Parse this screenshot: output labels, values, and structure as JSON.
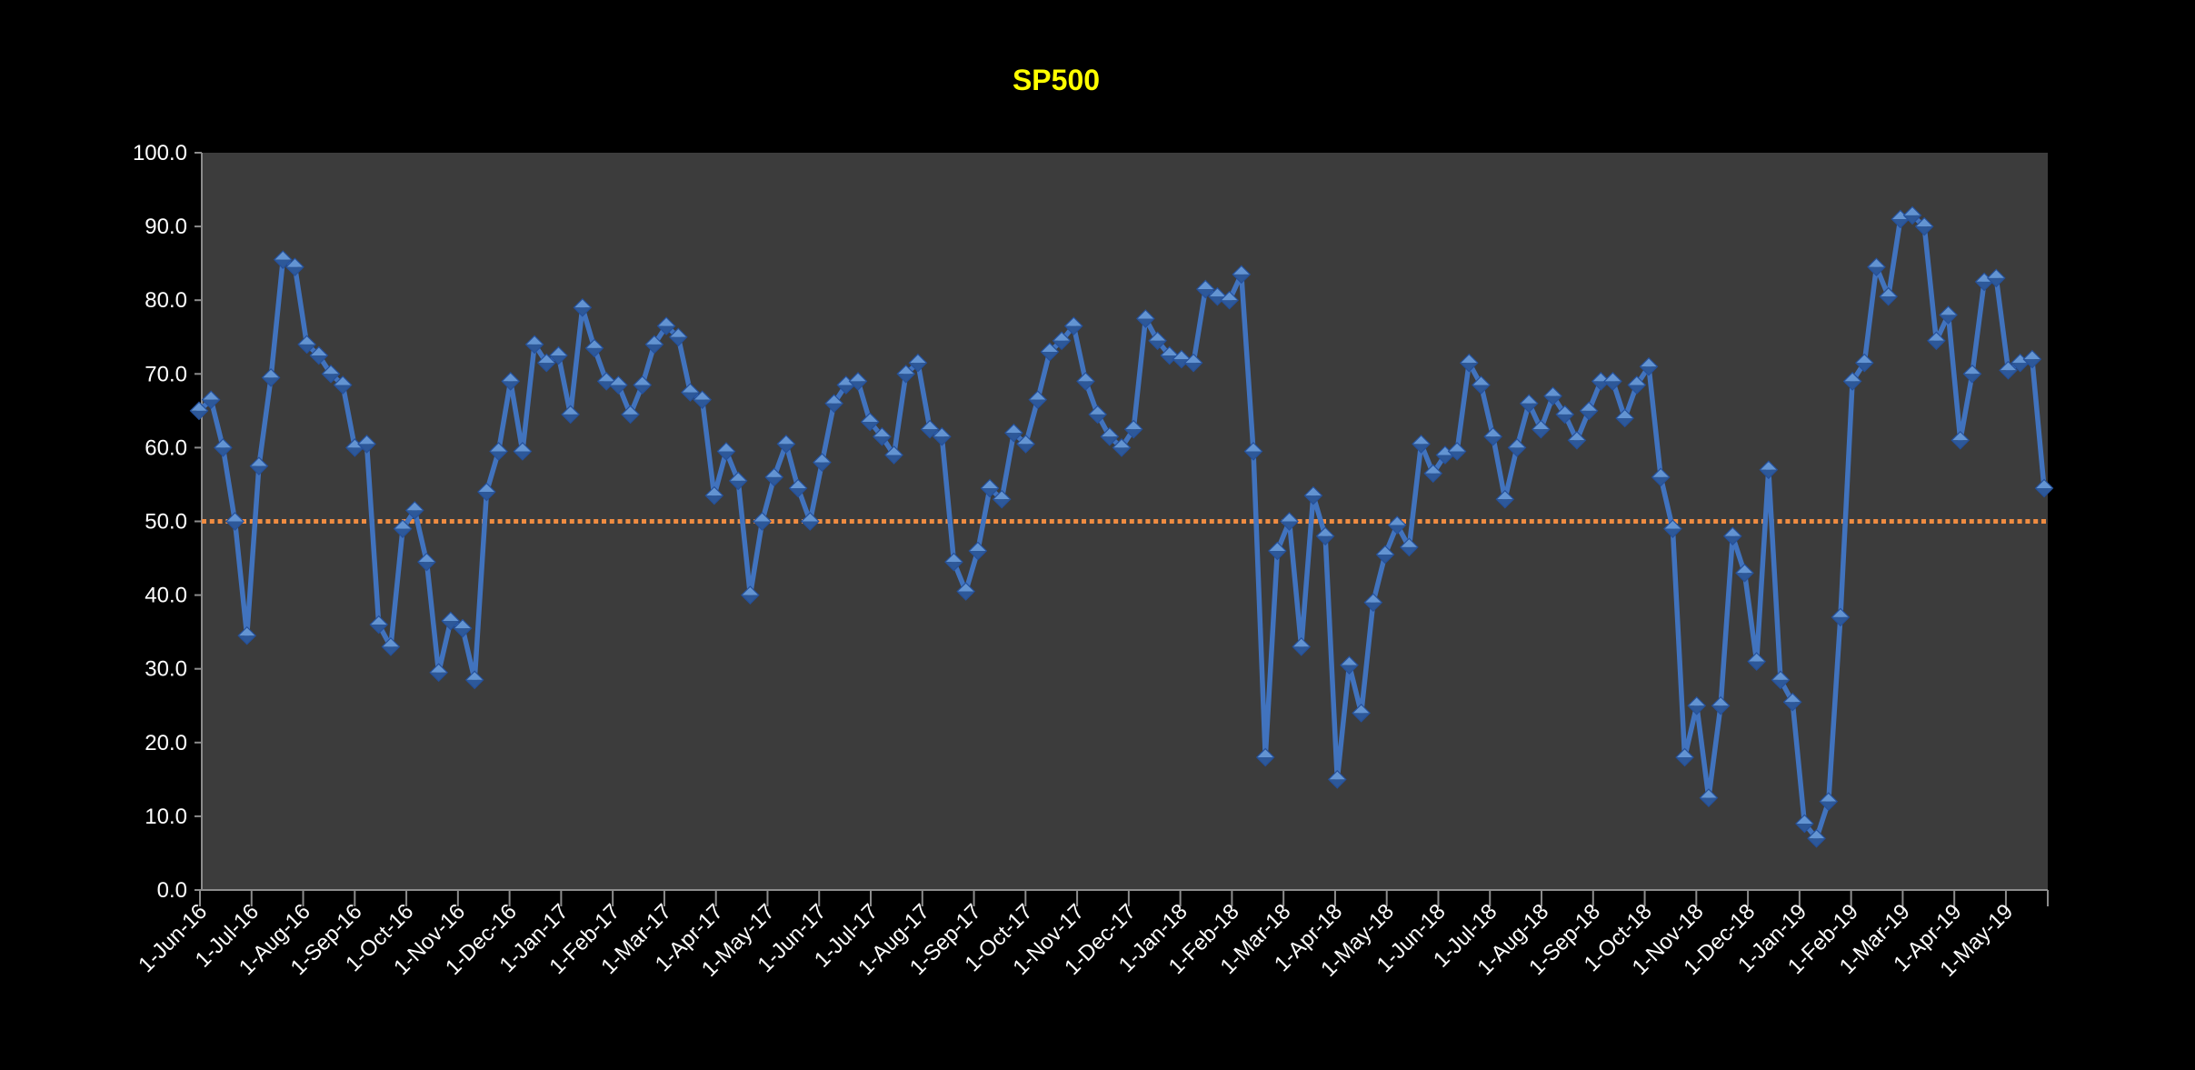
{
  "chart_data": {
    "type": "line",
    "title": "SP500",
    "marker": "diamond",
    "grid": false,
    "legend": "none",
    "frequency": "weekly",
    "ylim": [
      0,
      100
    ],
    "y_tick_labels": [
      "0.0",
      "10.0",
      "20.0",
      "30.0",
      "40.0",
      "50.0",
      "60.0",
      "70.0",
      "80.0",
      "90.0",
      "100.0"
    ],
    "x_tick_labels": [
      "1-Jun-16",
      "1-Jul-16",
      "1-Aug-16",
      "1-Sep-16",
      "1-Oct-16",
      "1-Nov-16",
      "1-Dec-16",
      "1-Jan-17",
      "1-Feb-17",
      "1-Mar-17",
      "1-Apr-17",
      "1-May-17",
      "1-Jun-17",
      "1-Jul-17",
      "1-Aug-17",
      "1-Sep-17",
      "1-Oct-17",
      "1-Nov-17",
      "1-Dec-17",
      "1-Jan-18",
      "1-Feb-18",
      "1-Mar-18",
      "1-Apr-18",
      "1-May-18",
      "1-Jun-18",
      "1-Jul-18",
      "1-Aug-18",
      "1-Sep-18",
      "1-Oct-18",
      "1-Nov-18",
      "1-Dec-18",
      "1-Jan-19",
      "1-Feb-19",
      "1-Mar-19",
      "1-Apr-19",
      "1-May-19"
    ],
    "reference_line": {
      "value": 50.0,
      "style": "dotted"
    },
    "series": [
      {
        "name": "SP500",
        "values": [
          65,
          66.5,
          60,
          50,
          34.5,
          57.5,
          69.5,
          85.5,
          84.5,
          74,
          72.5,
          70,
          68.5,
          60,
          60.5,
          36,
          33,
          49,
          51.5,
          44.5,
          29.5,
          36.5,
          35.5,
          28.5,
          54,
          59.5,
          69,
          59.5,
          74,
          71.5,
          72.5,
          64.5,
          79,
          73.5,
          69,
          68.5,
          64.5,
          68.5,
          74,
          76.5,
          75,
          67.5,
          66.5,
          53.5,
          59.5,
          55.5,
          40,
          50,
          56,
          60.5,
          54.5,
          50,
          58,
          66,
          68.5,
          69,
          63.5,
          61.5,
          59,
          70,
          71.5,
          62.5,
          61.5,
          44.5,
          40.5,
          46,
          54.5,
          53,
          62,
          60.5,
          66.5,
          73,
          74.5,
          76.5,
          69,
          64.5,
          61.5,
          60,
          62.5,
          77.5,
          74.5,
          72.5,
          72,
          71.5,
          81.5,
          80.5,
          80,
          83.5,
          59.5,
          18,
          46,
          50,
          33,
          53.5,
          48,
          15,
          30.5,
          24,
          39,
          45.5,
          49.5,
          46.5,
          60.5,
          56.5,
          59,
          59.5,
          71.5,
          68.5,
          61.5,
          53,
          60,
          66,
          62.5,
          67,
          64.5,
          61,
          65,
          69,
          69,
          64,
          68.5,
          71,
          56,
          49,
          18,
          25,
          12.5,
          25,
          48,
          43,
          31,
          57,
          28.5,
          25.5,
          9,
          7,
          12,
          37,
          69,
          71.5,
          84.5,
          80.5,
          91,
          91.5,
          90,
          74.5,
          78,
          61,
          70,
          82.5,
          83,
          70.5,
          71.5,
          72,
          54.5
        ]
      }
    ],
    "colors": {
      "title": "#FFFF00",
      "background": "#000000",
      "plot_background": "#3C3C3C",
      "line": "#4173BE",
      "marker_light": "#6394D2",
      "marker_dark": "#2D5899",
      "marker_outline": "#24509B",
      "reference_line": "#EF8C42",
      "axis": "#8C8C8C",
      "tick_label": "#FFFFFF"
    }
  }
}
